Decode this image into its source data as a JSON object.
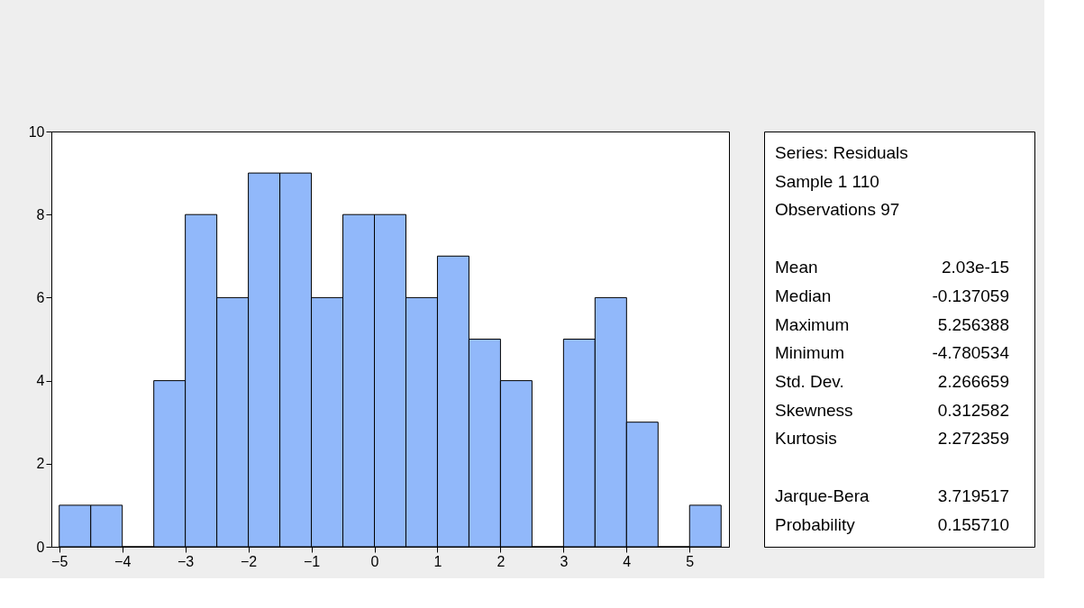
{
  "chart_data": {
    "type": "histogram",
    "bins": [
      -5,
      -4.5,
      -4,
      -3.5,
      -3,
      -2.5,
      -2,
      -1.5,
      -1,
      -0.5,
      0,
      0.5,
      1,
      1.5,
      2,
      2.5,
      3,
      3.5,
      4,
      4.5,
      5,
      5.5
    ],
    "values": [
      1,
      1,
      0,
      4,
      8,
      6,
      9,
      9,
      6,
      8,
      8,
      6,
      7,
      5,
      4,
      0,
      5,
      6,
      3,
      0,
      1
    ],
    "color": "#91b8fa",
    "xlim": [
      -5.125,
      5.625
    ],
    "xticks": [
      -5,
      -4,
      -3,
      -2,
      -1,
      0,
      1,
      2,
      3,
      4,
      5
    ],
    "ylim": [
      0,
      10
    ],
    "yticks": [
      0,
      2,
      4,
      6,
      8,
      10
    ],
    "grid": false,
    "annotations": [
      "Series: Residuals",
      "Sample 1 110",
      "Observations 97",
      "Mean\t2.03e-15",
      "Median\t-0.137059",
      "Maximum\t5.256388",
      "Minimum\t-4.780534",
      "Std. Dev.\t2.266659",
      "Skewness\t0.312582",
      "Kurtosis\t2.272359",
      "Jarque-Bera\t3.719517",
      "Probability\t0.155710"
    ]
  }
}
